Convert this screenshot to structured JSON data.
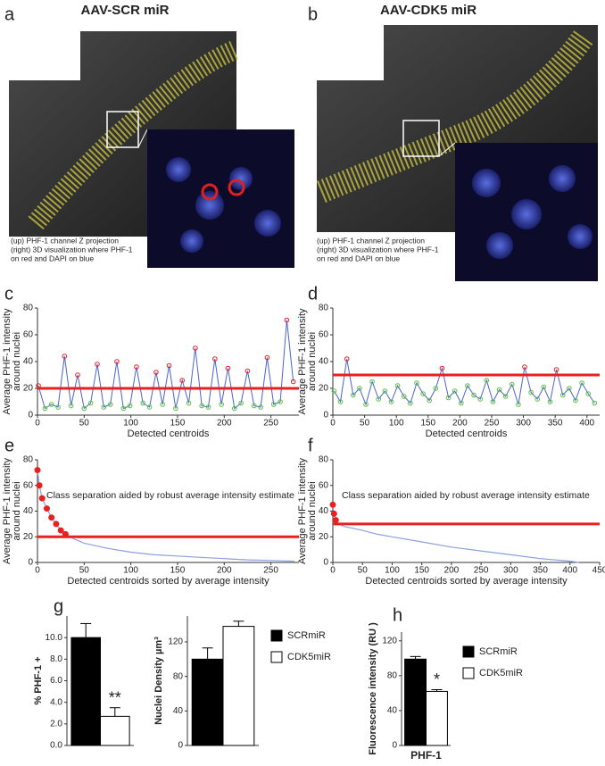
{
  "panel_labels": [
    "a",
    "b",
    "c",
    "d",
    "e",
    "f",
    "g",
    "h"
  ],
  "images": [
    {
      "title": "AAV-SCR miR",
      "caption": [
        "(up) PHF-1 channel Z projection",
        "(right) 3D visualization where PHF-1",
        "on red and DAPI on blue"
      ]
    },
    {
      "title": "AAV-CDK5 miR",
      "caption": [
        "(up) PHF-1 channel Z projection",
        "(right) 3D visualization where PHF-1",
        "on red and DAPI on blue"
      ]
    }
  ],
  "chart_data": [
    {
      "type": "line",
      "ylabel": [
        "Average PHF-1 intensity",
        "around nuclei"
      ],
      "xlabel": "Detected centroids",
      "x": [
        1,
        8,
        15,
        22,
        29,
        36,
        43,
        50,
        57,
        64,
        71,
        78,
        85,
        92,
        99,
        106,
        113,
        120,
        127,
        134,
        141,
        148,
        155,
        162,
        169,
        176,
        183,
        190,
        197,
        204,
        211,
        218,
        225,
        232,
        239,
        246,
        253,
        260,
        267,
        274
      ],
      "values": [
        22,
        5,
        8,
        6,
        44,
        7,
        30,
        5,
        9,
        38,
        6,
        8,
        40,
        5,
        7,
        36,
        9,
        6,
        32,
        8,
        37,
        5,
        26,
        9,
        50,
        7,
        6,
        42,
        8,
        35,
        5,
        9,
        33,
        7,
        6,
        43,
        8,
        10,
        71,
        25
      ],
      "color": "#4a64d0",
      "marker_color": "#5cc040",
      "markers": true,
      "threshold": {
        "value": 20,
        "color": "#e82020"
      },
      "xlim": [
        0,
        280
      ],
      "xticks": [
        0,
        50,
        100,
        150,
        200,
        250
      ],
      "ylim": [
        0,
        80
      ],
      "yticks": [
        0,
        20,
        40,
        60,
        80
      ]
    },
    {
      "type": "line",
      "ylabel": [
        "Average PHF-1 intensity",
        "around nuclei"
      ],
      "xlabel": "Detected centroids",
      "x": [
        2,
        12,
        22,
        32,
        42,
        52,
        62,
        72,
        82,
        92,
        102,
        112,
        122,
        132,
        142,
        152,
        162,
        172,
        182,
        192,
        202,
        212,
        222,
        232,
        242,
        252,
        262,
        272,
        282,
        292,
        302,
        312,
        322,
        332,
        342,
        352,
        362,
        372,
        382,
        392,
        402,
        412
      ],
      "values": [
        18,
        10,
        42,
        15,
        20,
        8,
        25,
        12,
        18,
        10,
        22,
        14,
        9,
        24,
        16,
        11,
        20,
        35,
        13,
        18,
        9,
        22,
        15,
        12,
        26,
        10,
        19,
        14,
        23,
        8,
        36,
        17,
        12,
        21,
        10,
        34,
        15,
        20,
        11,
        24,
        16,
        9
      ],
      "color": "#4a64d0",
      "marker_color": "#5cc040",
      "markers": true,
      "threshold": {
        "value": 30,
        "color": "#e82020"
      },
      "xlim": [
        0,
        420
      ],
      "xticks": [
        0,
        50,
        100,
        150,
        200,
        250,
        300,
        350,
        400
      ],
      "ylim": [
        0,
        80
      ],
      "yticks": [
        0,
        20,
        40,
        60,
        80
      ]
    },
    {
      "type": "line",
      "ylabel": [
        "Average PHF-1 intensity",
        "around nuclei"
      ],
      "xlabel": "Detected centroids sorted by average intensity",
      "annotation": "Class separation aided by robust average intensity estimate",
      "x": [
        0,
        2,
        5,
        10,
        15,
        20,
        25,
        30,
        40,
        50,
        75,
        100,
        125,
        150,
        175,
        200,
        225,
        250,
        275
      ],
      "values": [
        72,
        60,
        50,
        42,
        35,
        30,
        25,
        22,
        18,
        15,
        11,
        8,
        6,
        5,
        4,
        3,
        2,
        1.5,
        1
      ],
      "color": "#8aa0e0",
      "markers": false,
      "threshold": {
        "value": 20,
        "color": "#e82020"
      },
      "xlim": [
        0,
        280
      ],
      "xticks": [
        0,
        50,
        100,
        150,
        200,
        250
      ],
      "ylim": [
        0,
        80
      ],
      "yticks": [
        0,
        20,
        40,
        60,
        80
      ]
    },
    {
      "type": "line",
      "ylabel": [
        "Average PHF-1 intensity",
        "around nuclei"
      ],
      "xlabel": "Detected centroids sorted by average intensity",
      "annotation": "Class separation aided by robust average intensity estimate",
      "x": [
        0,
        2,
        5,
        10,
        20,
        30,
        50,
        75,
        100,
        150,
        200,
        250,
        300,
        350,
        400,
        415
      ],
      "values": [
        45,
        38,
        33,
        30,
        28,
        27,
        25,
        22,
        20,
        16,
        12,
        9,
        6,
        3,
        1,
        0
      ],
      "color": "#8aa0e0",
      "markers": false,
      "threshold": {
        "value": 30,
        "color": "#e82020"
      },
      "xlim": [
        0,
        450
      ],
      "xticks": [
        0,
        50,
        100,
        150,
        200,
        250,
        300,
        350,
        400,
        450
      ],
      "ylim": [
        0,
        80
      ],
      "yticks": [
        0,
        20,
        40,
        60,
        80
      ]
    },
    {
      "type": "bar",
      "ylabel": "% PHF-1 +",
      "annotation": "**",
      "series": [
        {
          "color": "#000000",
          "values": [
            10.0
          ],
          "errors": [
            1.3
          ]
        },
        {
          "color": "#ffffff",
          "values": [
            2.7
          ],
          "errors": [
            0.8
          ]
        }
      ],
      "ylim": [
        0,
        12
      ],
      "yticks": [
        {
          "value": 0,
          "label": "0.0"
        },
        {
          "value": 2,
          "label": "2.0"
        },
        {
          "value": 4,
          "label": "4.0"
        },
        {
          "value": 6,
          "label": "6.0"
        },
        {
          "value": 8,
          "label": "8.0"
        },
        {
          "value": 10,
          "label": "10.0"
        }
      ]
    },
    {
      "type": "bar",
      "ylabel": "Nuclei Density µm³",
      "legend": true,
      "series": [
        {
          "name": "SCRmiR",
          "color": "#000000",
          "values": [
            100
          ],
          "errors": [
            13
          ]
        },
        {
          "name": "CDK5miR",
          "color": "#ffffff",
          "values": [
            138
          ],
          "errors": [
            6
          ]
        }
      ],
      "ylim": [
        0,
        150
      ],
      "yticks": [
        0,
        40,
        80,
        120
      ]
    },
    {
      "type": "bar",
      "ylabel": "Fluorescence intensity (RU )",
      "annotation": "*",
      "legend": true,
      "categories": [
        "PHF-1"
      ],
      "series": [
        {
          "name": "SCRmiR",
          "color": "#000000",
          "values": [
            99
          ],
          "errors": [
            3
          ]
        },
        {
          "name": "CDK5miR",
          "color": "#ffffff",
          "values": [
            62
          ],
          "errors": [
            2
          ]
        }
      ],
      "ylim": [
        0,
        130
      ],
      "yticks": [
        0,
        40,
        80,
        120
      ]
    }
  ]
}
